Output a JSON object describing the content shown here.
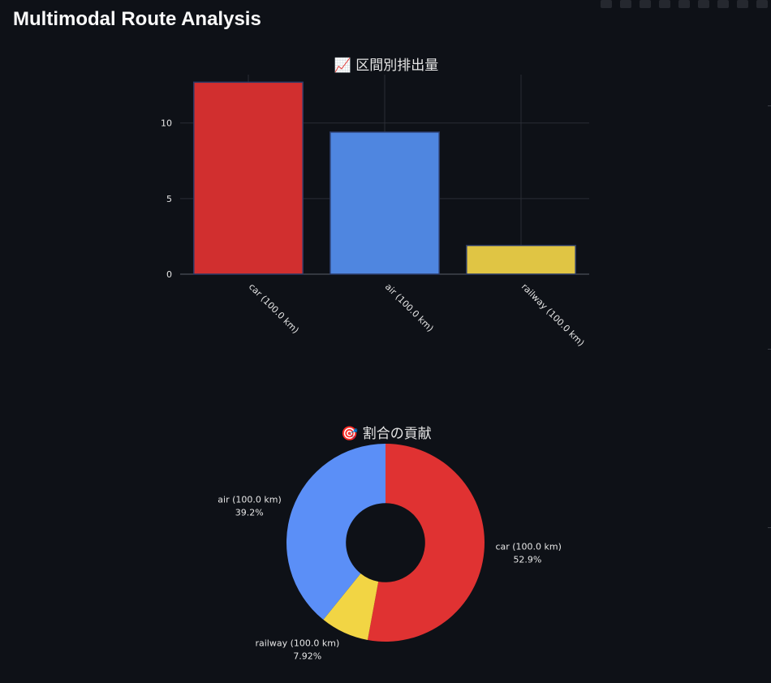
{
  "page": {
    "title": "Multimodal Route Analysis"
  },
  "colors": {
    "background": "#0e1117",
    "car": "#d12f2f",
    "air": "#4f86e0",
    "railway": "#e0c544",
    "pie_car": "#e03232",
    "pie_air": "#5b8ff7",
    "pie_railway": "#f2d544"
  },
  "chart_data": [
    {
      "type": "bar",
      "title": "📈 区間別排出量",
      "categories": [
        "car (100.0 km)",
        "air (100.0 km)",
        "railway (100.0 km)"
      ],
      "values": [
        12.7,
        9.4,
        1.9
      ],
      "colors": [
        "#d12f2f",
        "#4f86e0",
        "#e0c544"
      ],
      "ylim": [
        0,
        13.2
      ],
      "yticks": [
        0,
        5,
        10
      ],
      "xlabel": "",
      "ylabel": "",
      "grid": true
    },
    {
      "type": "pie",
      "title": "🎯 割合の貢献",
      "hole": 0.4,
      "slices": [
        {
          "label": "car (100.0 km)",
          "percent": "52.9%",
          "value": 52.9,
          "color": "#e03232"
        },
        {
          "label": "railway (100.0 km)",
          "percent": "7.92%",
          "value": 7.92,
          "color": "#f2d544"
        },
        {
          "label": "air (100.0 km)",
          "percent": "39.2%",
          "value": 39.2,
          "color": "#5b8ff7"
        }
      ]
    }
  ]
}
